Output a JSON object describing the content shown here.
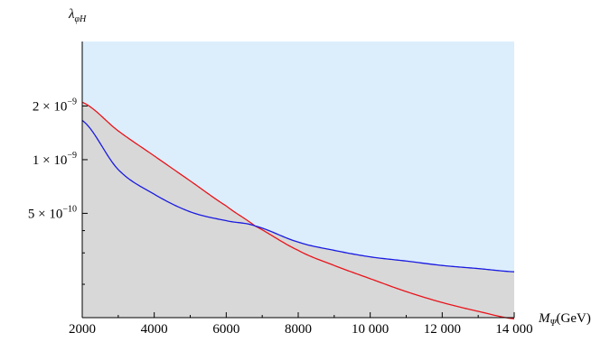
{
  "chart_data": {
    "type": "line",
    "x_axis": {
      "label_symbol": "M",
      "label_sub": "Ψ",
      "label_unit": "(GeV)",
      "range": [
        2000,
        14000
      ],
      "ticks": [
        2000,
        4000,
        6000,
        8000,
        10000,
        12000,
        14000
      ],
      "tick_labels": [
        "2000",
        "4000",
        "6000",
        "8000",
        "10 000",
        "12 000",
        "14 000"
      ]
    },
    "y_axis": {
      "label_symbol": "λ",
      "label_sub": "φH",
      "scale": "log",
      "range": [
        1.3e-10,
        4.6e-09
      ],
      "ticks": [
        {
          "value": 2e-09,
          "mantissa": "2",
          "times": "×",
          "base": "10",
          "exp": "−9"
        },
        {
          "value": 1e-09,
          "mantissa": "1",
          "times": "×",
          "base": "10",
          "exp": "−9"
        },
        {
          "value": 5e-10,
          "mantissa": "5",
          "times": "×",
          "base": "10",
          "exp": "−10"
        }
      ],
      "minor_ticks": [
        2e-10,
        3e-10,
        4e-10
      ]
    },
    "series": [
      {
        "color": "#e8141b",
        "x": [
          2000,
          3000,
          4000,
          5000,
          6000,
          6800,
          8000,
          9000,
          10000,
          11000,
          12000,
          13000,
          14000
        ],
        "y": [
          2.1e-09,
          1.45e-09,
          1.05e-09,
          7.6e-10,
          5.5e-10,
          4.25e-10,
          3.1e-10,
          2.55e-10,
          2.15e-10,
          1.82e-10,
          1.58e-10,
          1.41e-10,
          1.28e-10
        ]
      },
      {
        "color": "#1a1ae0",
        "x": [
          2000,
          3000,
          4000,
          5000,
          6000,
          6800,
          8000,
          9000,
          10000,
          11000,
          12000,
          13000,
          14000
        ],
        "y": [
          1.66e-09,
          8.8e-10,
          6.4e-10,
          5.1e-10,
          4.55e-10,
          4.25e-10,
          3.45e-10,
          3.1e-10,
          2.85e-10,
          2.7e-10,
          2.55e-10,
          2.45e-10,
          2.35e-10
        ]
      }
    ],
    "regions": [
      {
        "kind": "above_max",
        "color": "#dceefc"
      },
      {
        "kind": "below_max",
        "color": "#d8d8d8"
      }
    ],
    "grid": false
  }
}
